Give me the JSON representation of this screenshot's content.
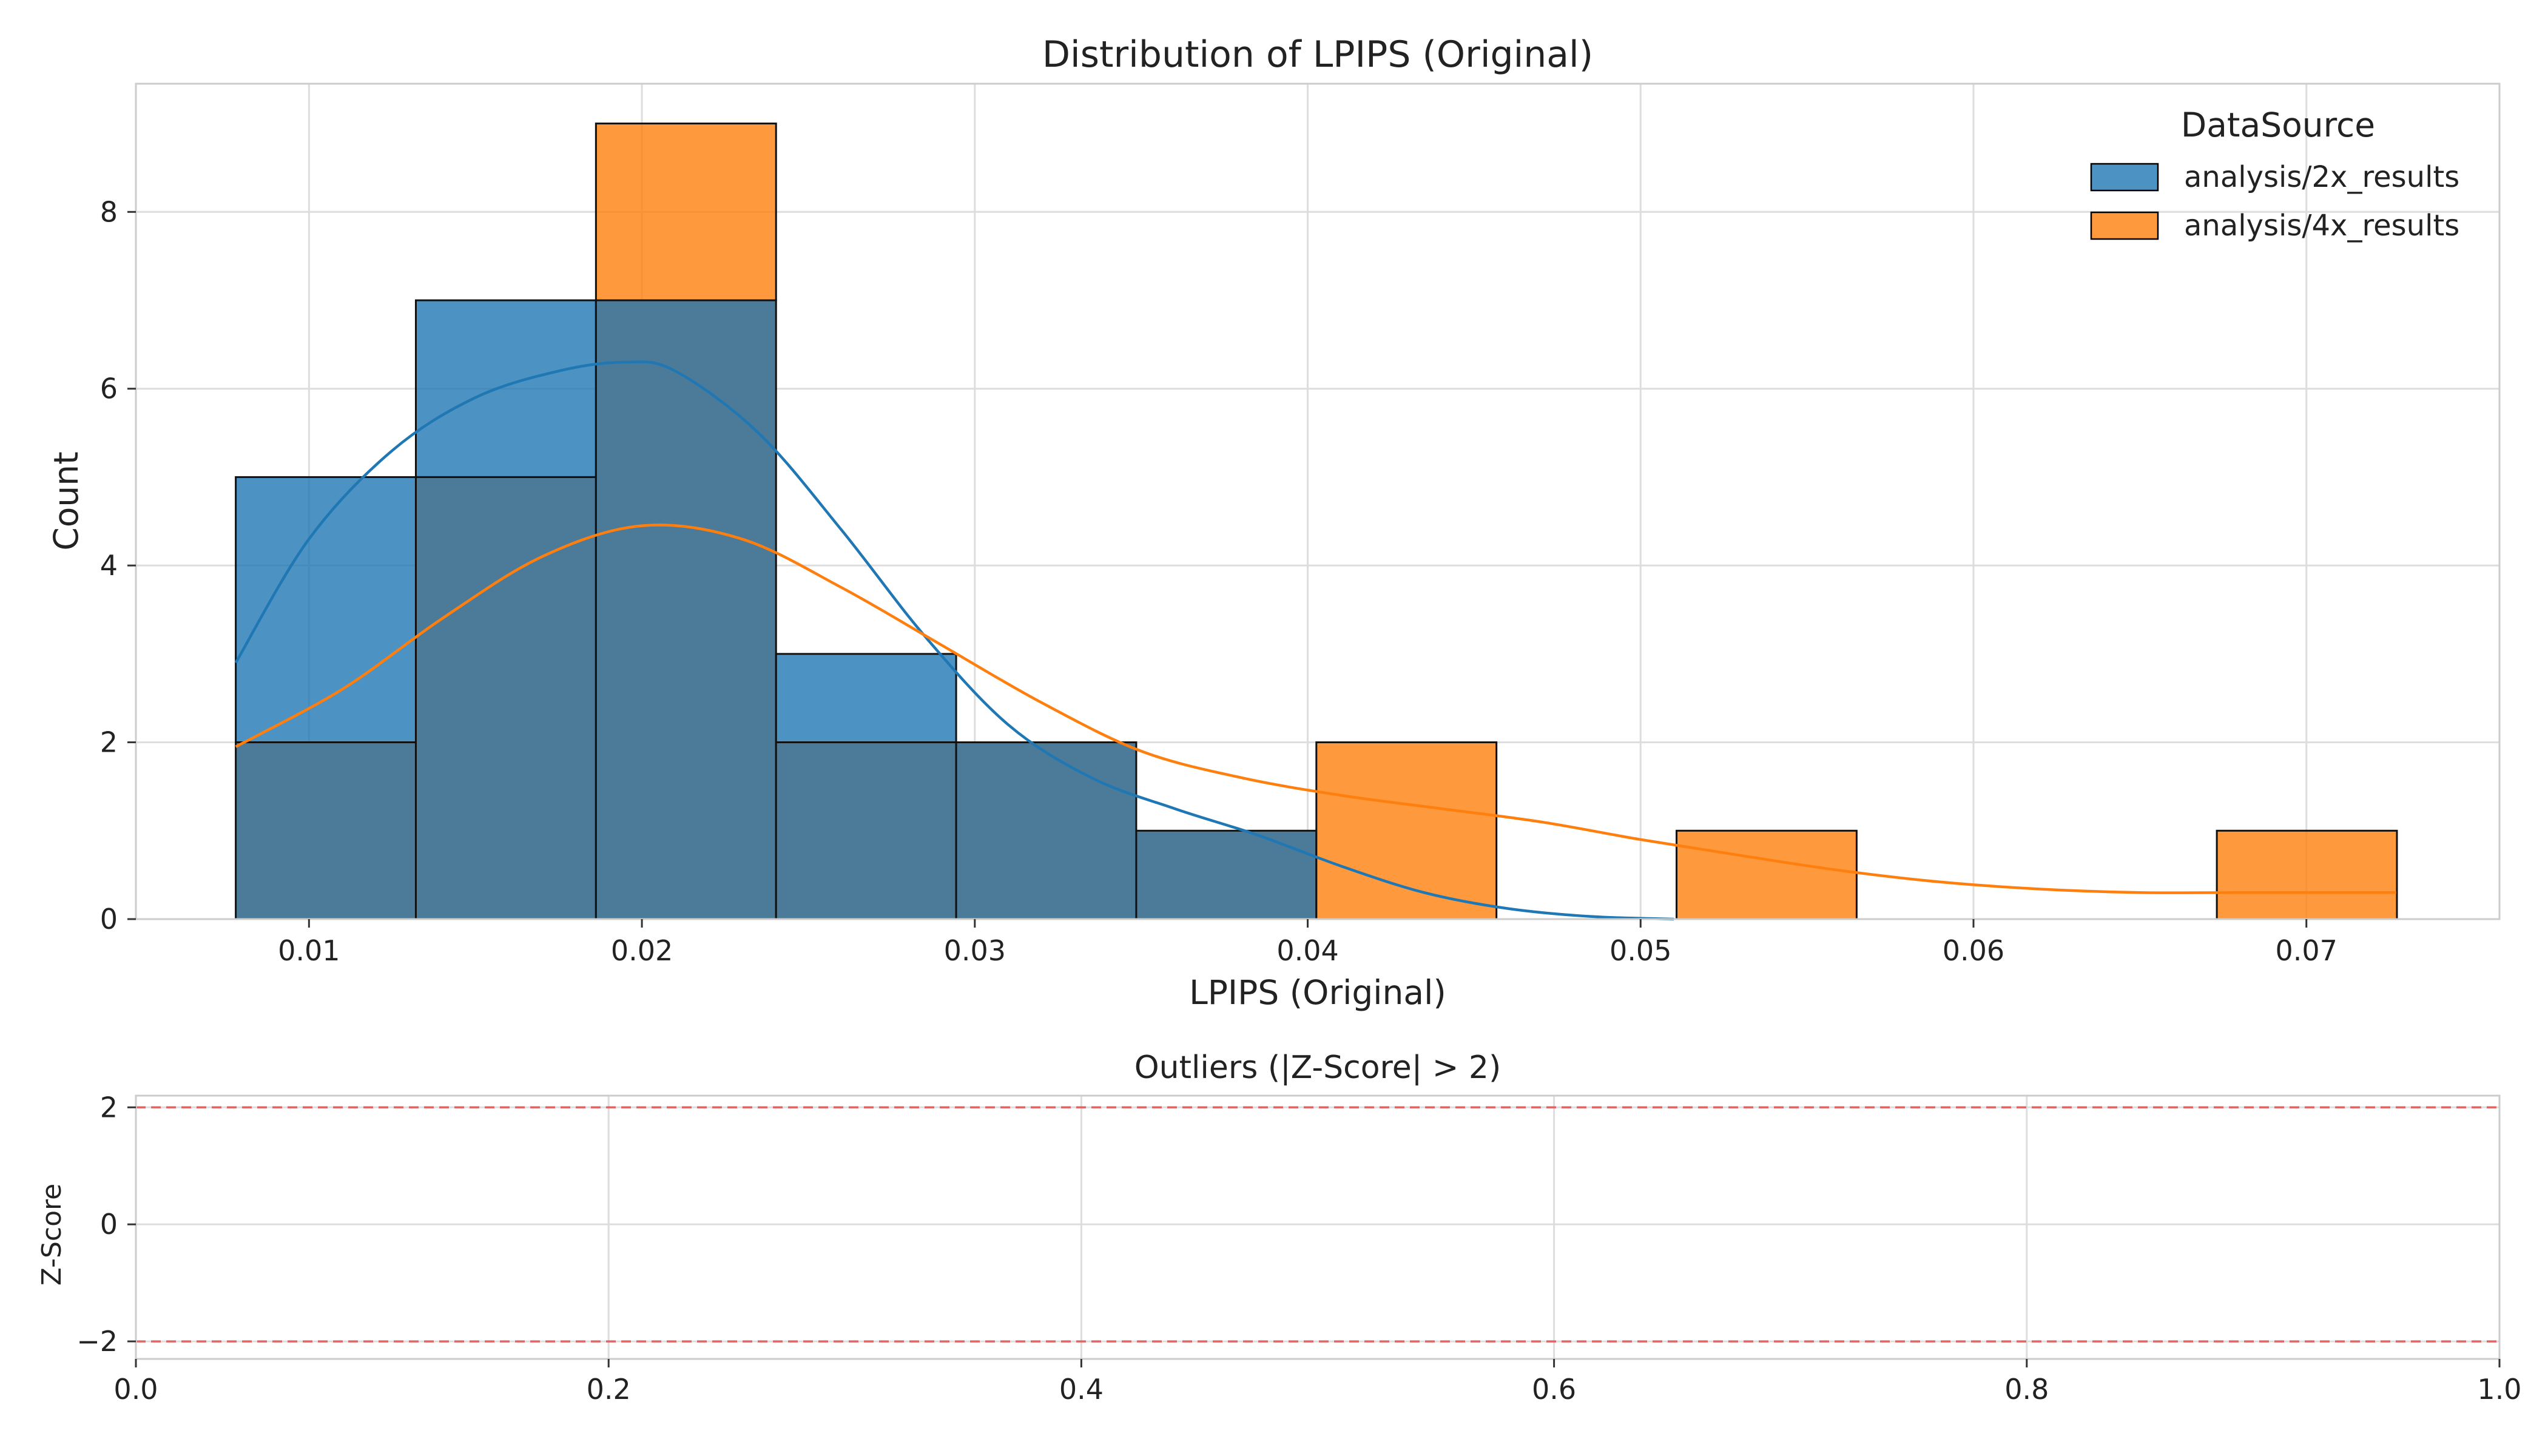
{
  "chart_data": [
    {
      "type": "bar",
      "subtype": "histogram-with-kde",
      "title": "Distribution of LPIPS (Original)",
      "xlabel": "LPIPS (Original)",
      "ylabel": "Count",
      "xlim": [
        0.0048,
        0.0758
      ],
      "ylim": [
        0,
        9.45
      ],
      "xticks": [
        "0.01",
        "0.02",
        "0.03",
        "0.04",
        "0.05",
        "0.06",
        "0.07"
      ],
      "yticks": [
        "0",
        "2",
        "4",
        "6",
        "8"
      ],
      "grid": true,
      "legend": {
        "title": "DataSource",
        "placement": "top-right"
      },
      "bin_edges": [
        0.0078,
        0.01321,
        0.01862,
        0.02403,
        0.02944,
        0.03485,
        0.04026,
        0.04567,
        0.05108,
        0.05649,
        0.0619,
        0.06731,
        0.07272
      ],
      "series": [
        {
          "name": "analysis/2x_results",
          "color": "#1f77b4",
          "counts": [
            5,
            7,
            7,
            3,
            2,
            1,
            0,
            0,
            0,
            0,
            0,
            0
          ],
          "kde": {
            "x": [
              0.0078,
              0.01,
              0.0125,
              0.015,
              0.0175,
              0.0195,
              0.021,
              0.0235,
              0.026,
              0.0285,
              0.031,
              0.0335,
              0.036,
              0.0385,
              0.041,
              0.0435,
              0.046,
              0.0485,
              0.051
            ],
            "y": [
              2.9,
              4.3,
              5.3,
              5.9,
              6.2,
              6.3,
              6.2,
              5.5,
              4.4,
              3.2,
              2.2,
              1.6,
              1.25,
              0.95,
              0.6,
              0.3,
              0.12,
              0.03,
              0.0
            ]
          }
        },
        {
          "name": "analysis/4x_results",
          "color": "#ff7f0e",
          "counts": [
            2,
            5,
            9,
            2,
            2,
            1,
            2,
            0,
            1,
            0,
            0,
            1
          ],
          "kde": {
            "x": [
              0.0078,
              0.011,
              0.014,
              0.017,
              0.02,
              0.023,
              0.026,
              0.029,
              0.032,
              0.035,
              0.038,
              0.041,
              0.044,
              0.047,
              0.05,
              0.053,
              0.056,
              0.059,
              0.062,
              0.065,
              0.068,
              0.0727
            ],
            "y": [
              1.95,
              2.6,
              3.4,
              4.1,
              4.45,
              4.3,
              3.75,
              3.1,
              2.45,
              1.9,
              1.6,
              1.4,
              1.25,
              1.1,
              0.9,
              0.72,
              0.55,
              0.42,
              0.34,
              0.3,
              0.3,
              0.3
            ]
          }
        }
      ]
    },
    {
      "type": "scatter",
      "title": "Outliers (|Z-Score| > 2)",
      "xlabel": "",
      "ylabel": "Z-Score",
      "xlim": [
        0.0,
        1.0
      ],
      "ylim": [
        -2.3,
        2.2
      ],
      "xticks": [
        "0.0",
        "0.2",
        "0.4",
        "0.6",
        "0.8",
        "1.0"
      ],
      "yticks": [
        "2",
        "0",
        "−2"
      ],
      "grid": true,
      "points": [],
      "threshold_lines": [
        2,
        -2
      ],
      "threshold_color": "#e06666"
    }
  ]
}
